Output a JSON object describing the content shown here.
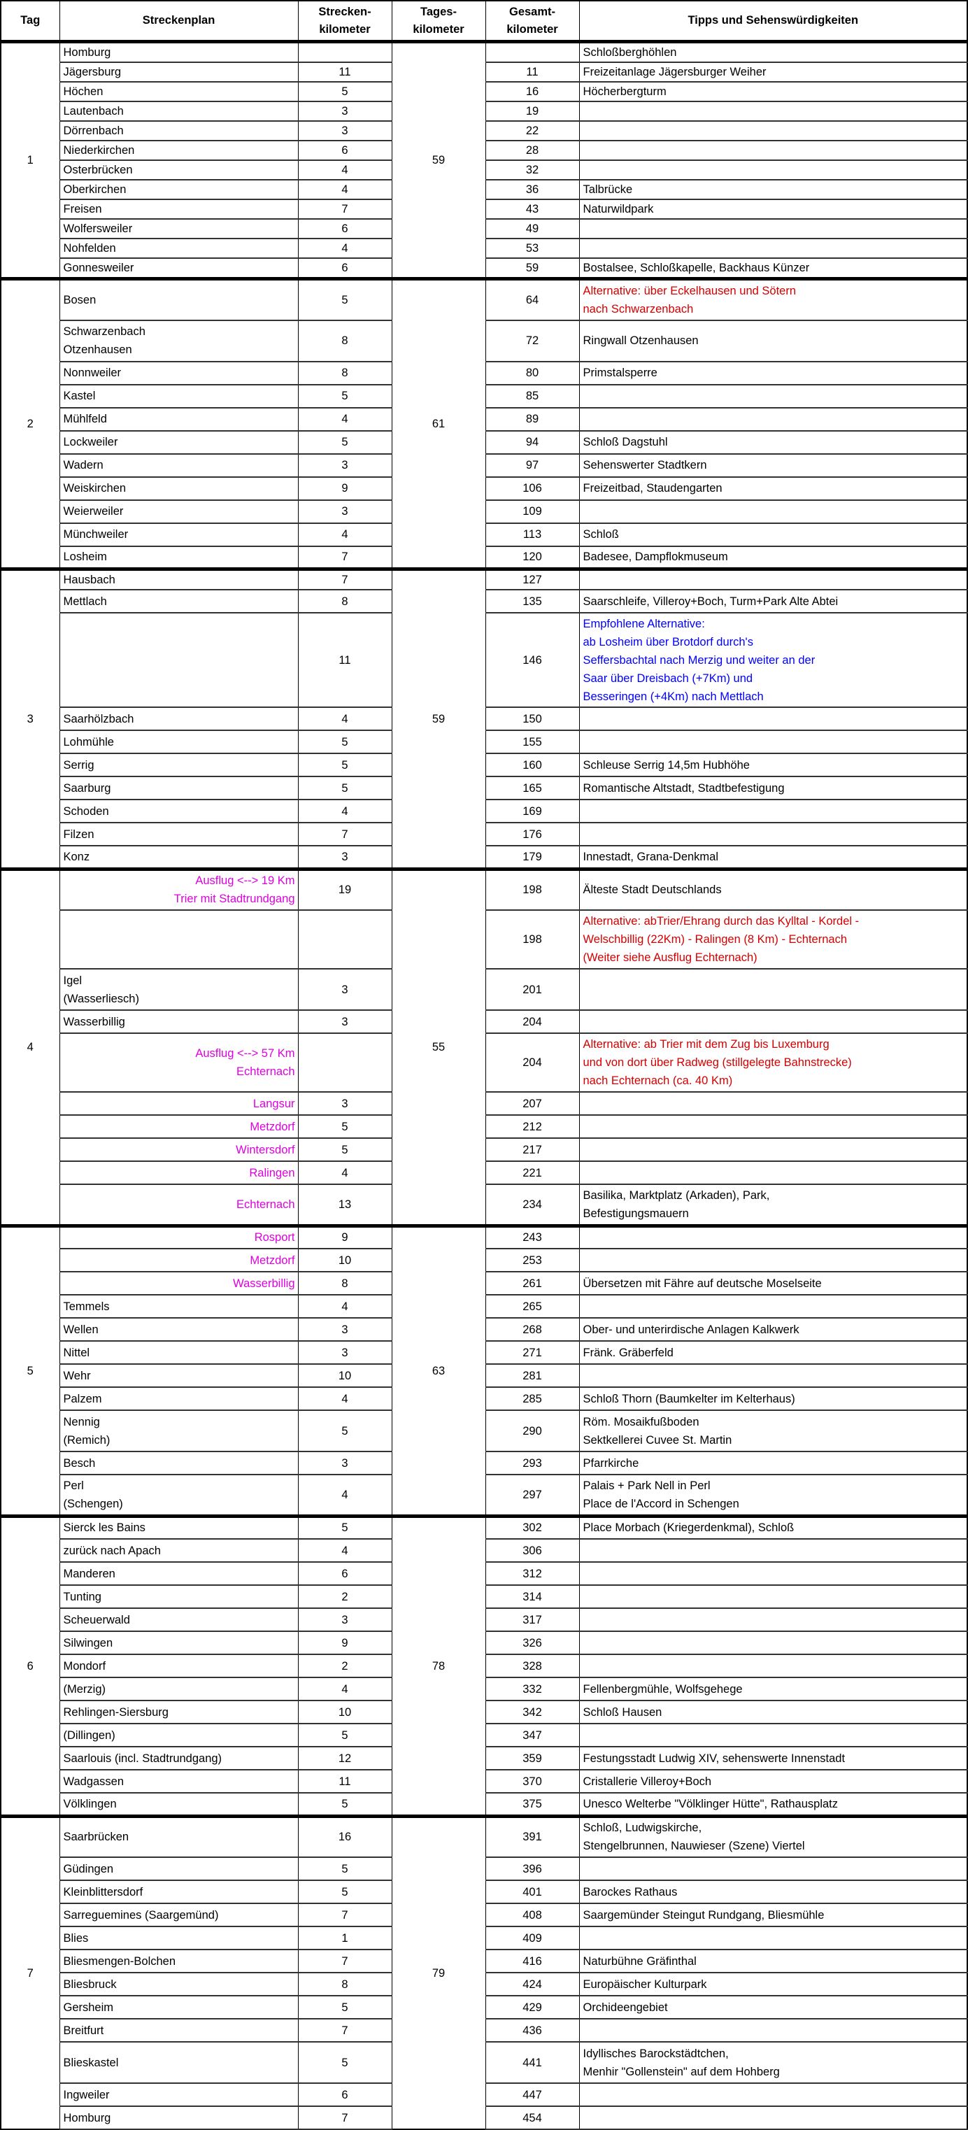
{
  "colors": {
    "alternative_red": "#d40000",
    "recommended_blue": "#0000ff",
    "excursion_magenta": "#e000e0"
  },
  "header": {
    "tag": "Tag",
    "streckenplan": "Streckenplan",
    "strecken_km": "Strecken-\nkilometer",
    "tages_km": "Tages-\nkilometer",
    "gesamt_km": "Gesamt-\nkilometer",
    "tipps": "Tipps und Sehenswürdigkeiten"
  },
  "days": [
    {
      "tag": "1",
      "tages_km": "59",
      "stops": [
        {
          "name": "Homburg",
          "km": "",
          "total": "",
          "tip": "Schloßberghöhlen"
        },
        {
          "name": "Jägersburg",
          "km": "11",
          "total": "11",
          "tip": "Freizeitanlage Jägersburger Weiher"
        },
        {
          "name": "Höchen",
          "km": "5",
          "total": "16",
          "tip": "Höcherbergturm"
        },
        {
          "name": "Lautenbach",
          "km": "3",
          "total": "19",
          "tip": ""
        },
        {
          "name": "Dörrenbach",
          "km": "3",
          "total": "22",
          "tip": ""
        },
        {
          "name": "Niederkirchen",
          "km": "6",
          "total": "28",
          "tip": ""
        },
        {
          "name": "Osterbrücken",
          "km": "4",
          "total": "32",
          "tip": ""
        },
        {
          "name": "Oberkirchen",
          "km": "4",
          "total": "36",
          "tip": "Talbrücke"
        },
        {
          "name": "Freisen",
          "km": "7",
          "total": "43",
          "tip": "Naturwildpark"
        },
        {
          "name": "Wolfersweiler",
          "km": "6",
          "total": "49",
          "tip": ""
        },
        {
          "name": "Nohfelden",
          "km": "4",
          "total": "53",
          "tip": ""
        },
        {
          "name": "Gonnesweiler",
          "km": "6",
          "total": "59",
          "tip": "Bostalsee, Schloßkapelle, Backhaus Künzer"
        }
      ]
    },
    {
      "tag": "2",
      "tages_km": "61",
      "stops": [
        {
          "name": "Bosen",
          "km": "5",
          "total": "64",
          "tip": "Alternative: über Eckelhausen und Sötern\nnach Schwarzenbach",
          "tip_color": "alternative_red"
        },
        {
          "name": "Schwarzenbach\nOtzenhausen",
          "km": "8",
          "total": "72",
          "tip": "Ringwall Otzenhausen"
        },
        {
          "name": "Nonnweiler",
          "km": "8",
          "total": "80",
          "tip": "Primstalsperre"
        },
        {
          "name": "Kastel",
          "km": "5",
          "total": "85",
          "tip": ""
        },
        {
          "name": "Mühlfeld",
          "km": "4",
          "total": "89",
          "tip": ""
        },
        {
          "name": "Lockweiler",
          "km": "5",
          "total": "94",
          "tip": "Schloß Dagstuhl"
        },
        {
          "name": "Wadern",
          "km": "3",
          "total": "97",
          "tip": "Sehenswerter Stadtkern"
        },
        {
          "name": "Weiskirchen",
          "km": "9",
          "total": "106",
          "tip": "Freizeitbad, Staudengarten"
        },
        {
          "name": "Weierweiler",
          "km": "3",
          "total": "109",
          "tip": ""
        },
        {
          "name": "Münchweiler",
          "km": "4",
          "total": "113",
          "tip": "Schloß"
        },
        {
          "name": "Losheim",
          "km": "7",
          "total": "120",
          "tip": "Badesee, Dampflokmuseum"
        }
      ]
    },
    {
      "tag": "3",
      "tages_km": "59",
      "stops": [
        {
          "name": "Hausbach",
          "km": "7",
          "total": "127",
          "tip": ""
        },
        {
          "name": "Mettlach",
          "km": "8",
          "total": "135",
          "tip": "Saarschleife, Villeroy+Boch, Turm+Park Alte Abtei"
        },
        {
          "name": "",
          "km": "11",
          "total": "146",
          "tip": "Empfohlene Alternative:\nab Losheim über Brotdorf durch's\nSeffersbachtal nach Merzig und weiter an der\nSaar über Dreisbach (+7Km) und\nBesseringen (+4Km) nach Mettlach",
          "tip_color": "recommended_blue"
        },
        {
          "name": "Saarhölzbach",
          "km": "4",
          "total": "150",
          "tip": ""
        },
        {
          "name": "Lohmühle",
          "km": "5",
          "total": "155",
          "tip": ""
        },
        {
          "name": "Serrig",
          "km": "5",
          "total": "160",
          "tip": "Schleuse Serrig 14,5m Hubhöhe"
        },
        {
          "name": "Saarburg",
          "km": "5",
          "total": "165",
          "tip": "Romantische Altstadt, Stadtbefestigung"
        },
        {
          "name": "Schoden",
          "km": "4",
          "total": "169",
          "tip": ""
        },
        {
          "name": "Filzen",
          "km": "7",
          "total": "176",
          "tip": ""
        },
        {
          "name": "Konz",
          "km": "3",
          "total": "179",
          "tip": "Innestadt, Grana-Denkmal"
        }
      ]
    },
    {
      "tag": "4",
      "tages_km": "55",
      "stops": [
        {
          "name": "Ausflug <--> 19 Km\nTrier mit Stadtrundgang",
          "name_color": "excursion_magenta",
          "km": "19",
          "total": "198",
          "tip": "Älteste Stadt Deutschlands"
        },
        {
          "name": "",
          "km": "",
          "total": "198",
          "tip": "Alternative: abTrier/Ehrang durch das Kylltal - Kordel -\nWelschbillig (22Km) - Ralingen (8 Km) - Echternach\n(Weiter siehe Ausflug Echternach)",
          "tip_color": "alternative_red"
        },
        {
          "name": "Igel\n(Wasserliesch)",
          "km": "3",
          "total": "201",
          "tip": ""
        },
        {
          "name": "Wasserbillig",
          "km": "3",
          "total": "204",
          "tip": ""
        },
        {
          "name": "Ausflug <--> 57 Km\nEchternach",
          "name_color": "excursion_magenta",
          "km": "",
          "total": "204",
          "tip": "Alternative: ab Trier mit dem Zug bis Luxemburg\nund von dort über Radweg (stillgelegte Bahnstrecke)\nnach Echternach (ca. 40 Km)",
          "tip_color": "alternative_red"
        },
        {
          "name": "Langsur",
          "name_color": "excursion_magenta",
          "km": "3",
          "total": "207",
          "tip": ""
        },
        {
          "name": "Metzdorf",
          "name_color": "excursion_magenta",
          "km": "5",
          "total": "212",
          "tip": ""
        },
        {
          "name": "Wintersdorf",
          "name_color": "excursion_magenta",
          "km": "5",
          "total": "217",
          "tip": ""
        },
        {
          "name": "Ralingen",
          "name_color": "excursion_magenta",
          "km": "4",
          "total": "221",
          "tip": ""
        },
        {
          "name": "Echternach",
          "name_color": "excursion_magenta",
          "km": "13",
          "total": "234",
          "tip": "Basilika, Marktplatz (Arkaden), Park,\nBefestigungsmauern"
        }
      ]
    },
    {
      "tag": "5",
      "tages_km": "63",
      "stops": [
        {
          "name": "Rosport",
          "name_color": "excursion_magenta",
          "km": "9",
          "total": "243",
          "tip": ""
        },
        {
          "name": "Metzdorf",
          "name_color": "excursion_magenta",
          "km": "10",
          "total": "253",
          "tip": ""
        },
        {
          "name": "Wasserbillig",
          "name_color": "excursion_magenta",
          "km": "8",
          "total": "261",
          "tip": "Übersetzen mit Fähre auf deutsche Moselseite"
        },
        {
          "name": "Temmels",
          "km": "4",
          "total": "265",
          "tip": ""
        },
        {
          "name": "Wellen",
          "km": "3",
          "total": "268",
          "tip": "Ober- und unterirdische Anlagen Kalkwerk"
        },
        {
          "name": "Nittel",
          "km": "3",
          "total": "271",
          "tip": "Fränk. Gräberfeld"
        },
        {
          "name": "Wehr",
          "km": "10",
          "total": "281",
          "tip": ""
        },
        {
          "name": "Palzem",
          "km": "4",
          "total": "285",
          "tip": "Schloß Thorn (Baumkelter im Kelterhaus)"
        },
        {
          "name": "Nennig\n(Remich)",
          "km": "5",
          "total": "290",
          "tip": "Röm. Mosaikfußboden\nSektkellerei Cuvee St. Martin"
        },
        {
          "name": "Besch",
          "km": "3",
          "total": "293",
          "tip": "Pfarrkirche"
        },
        {
          "name": "Perl\n(Schengen)",
          "km": "4",
          "total": "297",
          "tip": "Palais + Park Nell in Perl\nPlace de l'Accord in Schengen"
        }
      ]
    },
    {
      "tag": "6",
      "tages_km": "78",
      "stops": [
        {
          "name": "Sierck les Bains",
          "km": "5",
          "total": "302",
          "tip": "Place Morbach (Kriegerdenkmal), Schloß"
        },
        {
          "name": "zurück nach Apach",
          "km": "4",
          "total": "306",
          "tip": ""
        },
        {
          "name": "Manderen",
          "km": "6",
          "total": "312",
          "tip": ""
        },
        {
          "name": "Tunting",
          "km": "2",
          "total": "314",
          "tip": ""
        },
        {
          "name": "Scheuerwald",
          "km": "3",
          "total": "317",
          "tip": ""
        },
        {
          "name": "Silwingen",
          "km": "9",
          "total": "326",
          "tip": ""
        },
        {
          "name": "Mondorf",
          "km": "2",
          "total": "328",
          "tip": ""
        },
        {
          "name": "(Merzig)",
          "km": "4",
          "total": "332",
          "tip": "Fellenbergmühle, Wolfsgehege"
        },
        {
          "name": "Rehlingen-Siersburg",
          "km": "10",
          "total": "342",
          "tip": "Schloß Hausen"
        },
        {
          "name": "(Dillingen)",
          "km": "5",
          "total": "347",
          "tip": ""
        },
        {
          "name": "Saarlouis (incl. Stadtrundgang)",
          "km": "12",
          "total": "359",
          "tip": "Festungsstadt Ludwig XIV, sehenswerte Innenstadt"
        },
        {
          "name": "Wadgassen",
          "km": "11",
          "total": "370",
          "tip": "Cristallerie Villeroy+Boch"
        },
        {
          "name": "Völklingen",
          "km": "5",
          "total": "375",
          "tip": "Unesco Welterbe \"Völklinger Hütte\", Rathausplatz"
        }
      ]
    },
    {
      "tag": "7",
      "tages_km": "79",
      "stops": [
        {
          "name": "Saarbrücken",
          "km": "16",
          "total": "391",
          "tip": "Schloß, Ludwigskirche,\nStengelbrunnen, Nauwieser (Szene) Viertel"
        },
        {
          "name": "Güdingen",
          "km": "5",
          "total": "396",
          "tip": ""
        },
        {
          "name": "Kleinblittersdorf",
          "km": "5",
          "total": "401",
          "tip": "Barockes Rathaus"
        },
        {
          "name": "Sarreguemines (Saargemünd)",
          "km": "7",
          "total": "408",
          "tip": "Saargemünder Steingut Rundgang, Bliesmühle"
        },
        {
          "name": "Blies",
          "km": "1",
          "total": "409",
          "tip": ""
        },
        {
          "name": "Bliesmengen-Bolchen",
          "km": "7",
          "total": "416",
          "tip": "Naturbühne Gräfinthal"
        },
        {
          "name": "Bliesbruck",
          "km": "8",
          "total": "424",
          "tip": "Europäischer Kulturpark"
        },
        {
          "name": "Gersheim",
          "km": "5",
          "total": "429",
          "tip": "Orchideengebiet"
        },
        {
          "name": "Breitfurt",
          "km": "7",
          "total": "436",
          "tip": ""
        },
        {
          "name": "Blieskastel",
          "km": "5",
          "total": "441",
          "tip": "Idyllisches Barockstädtchen,\nMenhir \"Gollenstein\" auf dem Hohberg"
        },
        {
          "name": "Ingweiler",
          "km": "6",
          "total": "447",
          "tip": ""
        },
        {
          "name": "Homburg",
          "km": "7",
          "total": "454",
          "tip": ""
        }
      ]
    }
  ]
}
